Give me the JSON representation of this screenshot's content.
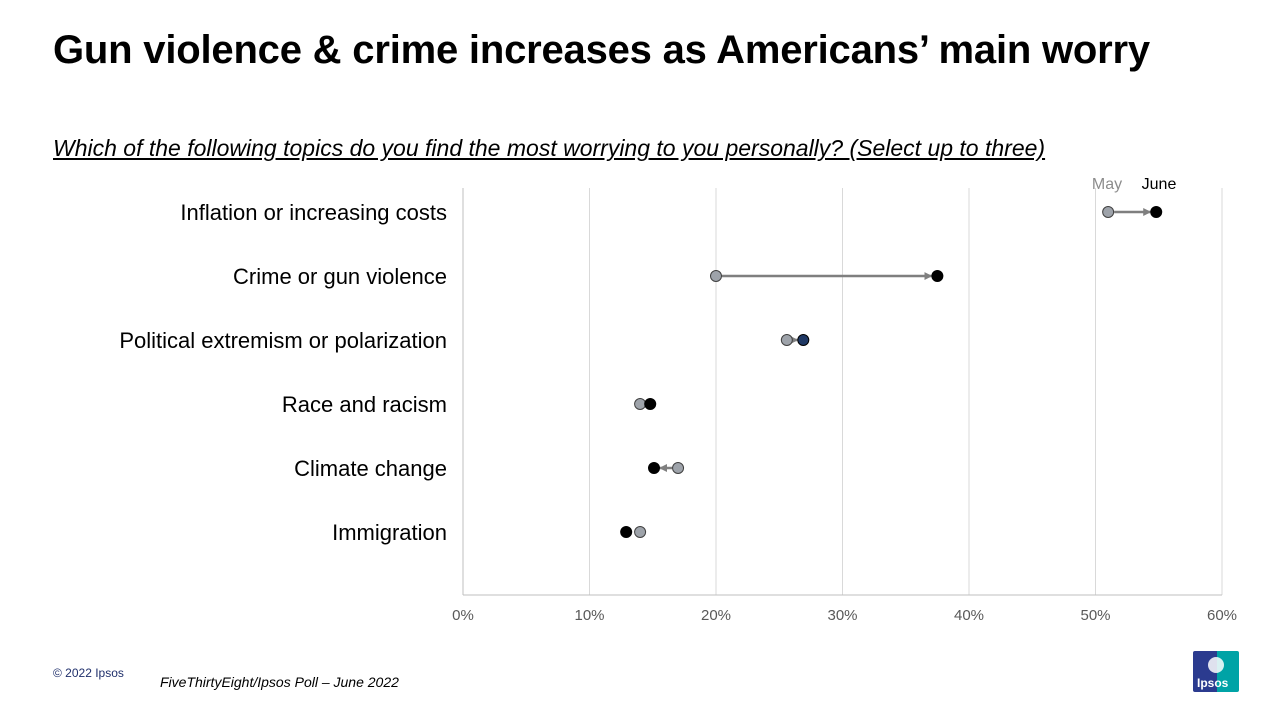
{
  "title": "Gun violence & crime increases as Americans’ main worry",
  "question": "Which of the following topics do you find the most worrying to you personally?  (Select up to three)",
  "footer": {
    "copyright": "© 2022 Ipsos",
    "source": "FiveThirtyEight/Ipsos Poll – June 2022",
    "logo_text": "Ipsos"
  },
  "colors": {
    "may": "#9ea3aa",
    "june": "#000000",
    "june_highlight": "#1f3864",
    "arrow": "#7f7f7f",
    "grid": "#d9d9d9"
  },
  "chart_data": {
    "type": "dumbbell",
    "title": "Gun violence & crime increases as Americans’ main worry",
    "xlabel": "",
    "ylabel": "",
    "xlim": [
      0,
      60
    ],
    "x_ticks": [
      0,
      10,
      20,
      30,
      40,
      50,
      60
    ],
    "x_tick_labels": [
      "0%",
      "10%",
      "20%",
      "30%",
      "40%",
      "50%",
      "60%"
    ],
    "legend": {
      "position": "top-right",
      "entries": [
        "May",
        "June"
      ]
    },
    "grid": "vertical",
    "categories": [
      "Inflation or increasing costs",
      "Crime or gun violence",
      "Political extremism or polarization",
      "Race and racism",
      "Climate change",
      "Immigration"
    ],
    "series": [
      {
        "name": "May",
        "values": [
          51,
          20,
          25.6,
          14,
          17,
          14
        ]
      },
      {
        "name": "June",
        "values": [
          54.8,
          37.5,
          26.9,
          14.8,
          15.1,
          12.9
        ]
      }
    ]
  }
}
